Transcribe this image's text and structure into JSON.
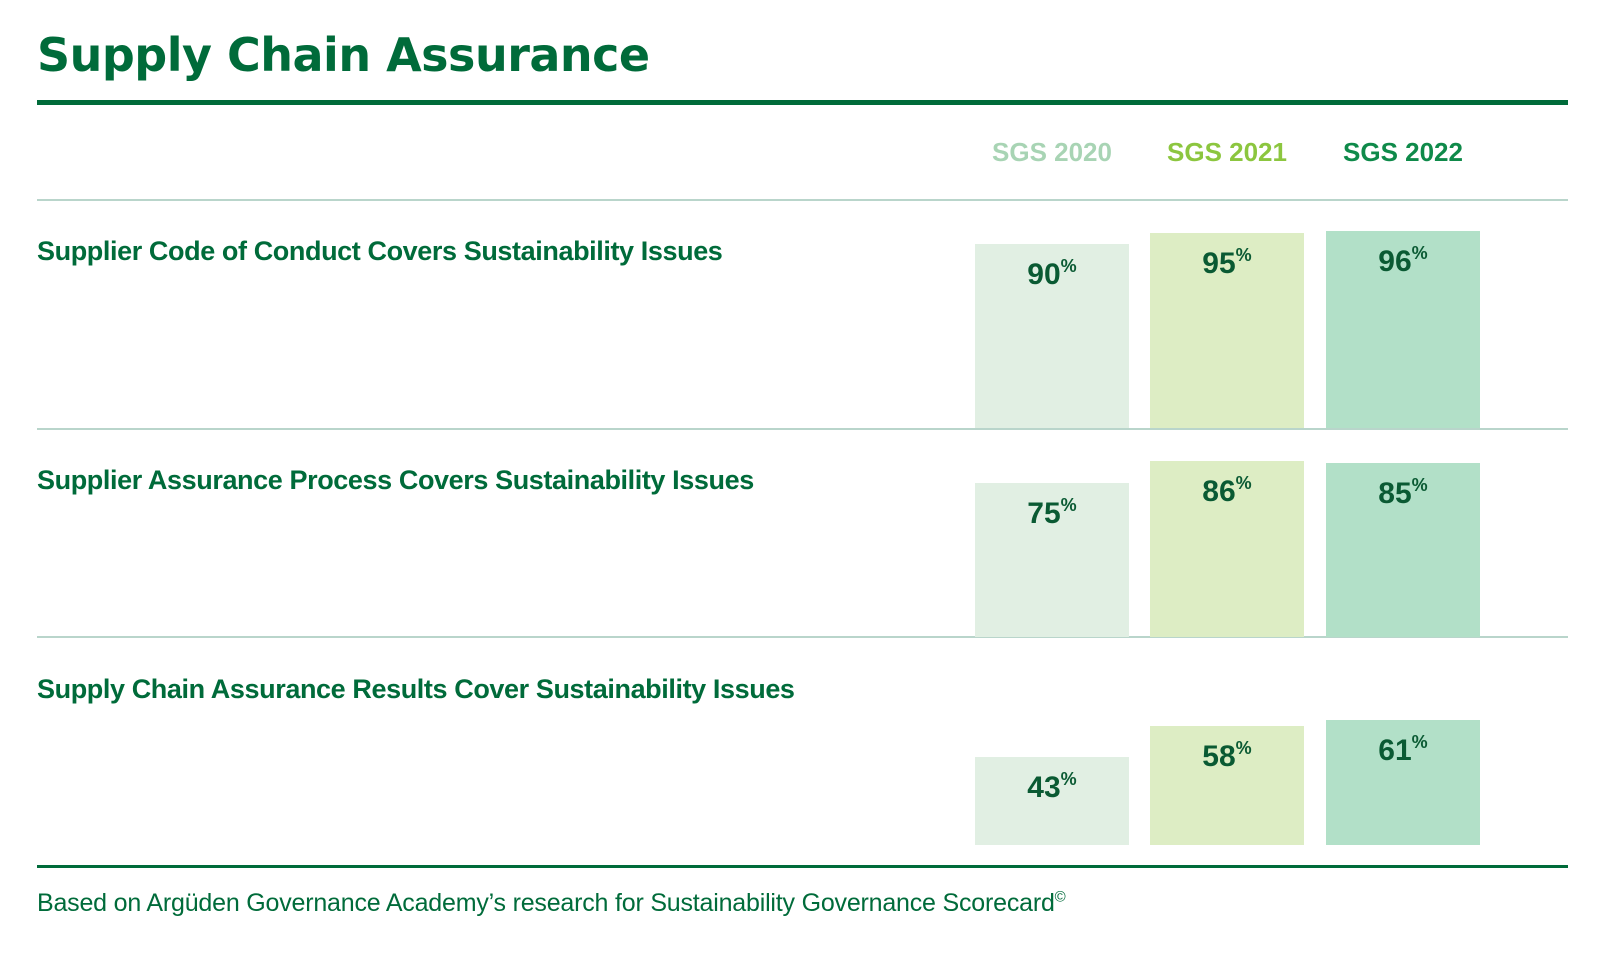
{
  "title": "Supply Chain Assurance",
  "footnote": "Based on Argüden Governance Academy’s research for Sustainability Governance Scorecard",
  "footnote_mark": "©",
  "colors": {
    "brand": "#006b3a",
    "series": [
      "#e1efe3",
      "#ddedc4",
      "#b2e0c8"
    ],
    "series_header": [
      "#a8d4b4",
      "#8cc63f",
      "#0f8a4a"
    ]
  },
  "chart_data": {
    "type": "bar",
    "series": [
      {
        "name": "SGS 2020",
        "values": [
          90,
          75,
          43
        ]
      },
      {
        "name": "SGS 2021",
        "values": [
          95,
          86,
          58
        ]
      },
      {
        "name": "SGS 2022",
        "values": [
          96,
          85,
          61
        ]
      }
    ],
    "categories": [
      "Supplier Code of Conduct Covers Sustainability Issues",
      "Supplier Assurance Process Covers Sustainability Issues",
      "Supply Chain Assurance Results Cover Sustainability Issues"
    ],
    "unit": "%",
    "ylim": [
      0,
      100
    ]
  }
}
